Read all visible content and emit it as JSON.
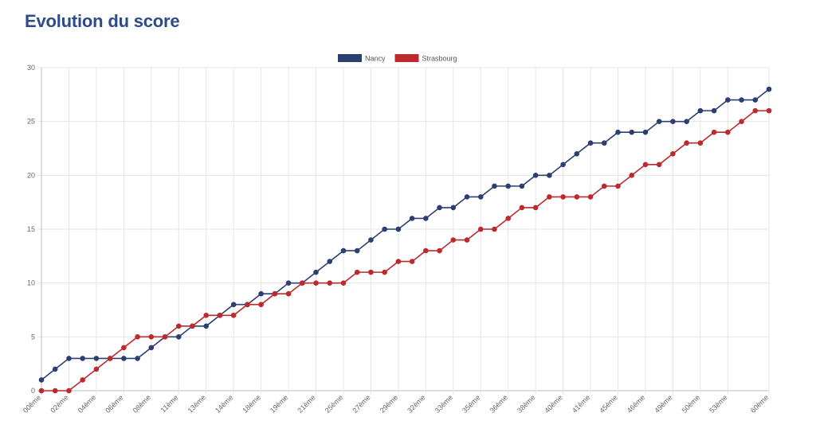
{
  "header": {
    "title": "Evolution du score"
  },
  "chart_data": {
    "type": "line",
    "title": "Evolution du score",
    "xlabel": "",
    "ylabel": "",
    "ylim": [
      0,
      30
    ],
    "yticks": [
      0,
      5,
      10,
      15,
      20,
      25,
      30
    ],
    "grid": true,
    "legend_position": "top-center",
    "x_tick_labels": [
      {
        "index": 0,
        "label": "00ème"
      },
      {
        "index": 2,
        "label": "02ème"
      },
      {
        "index": 4,
        "label": "04ème"
      },
      {
        "index": 6,
        "label": "06ème"
      },
      {
        "index": 8,
        "label": "08ème"
      },
      {
        "index": 10,
        "label": "11ème"
      },
      {
        "index": 12,
        "label": "13ème"
      },
      {
        "index": 14,
        "label": "14ème"
      },
      {
        "index": 16,
        "label": "18ème"
      },
      {
        "index": 18,
        "label": "19ème"
      },
      {
        "index": 20,
        "label": "21ème"
      },
      {
        "index": 22,
        "label": "25ème"
      },
      {
        "index": 24,
        "label": "27ème"
      },
      {
        "index": 26,
        "label": "29ème"
      },
      {
        "index": 28,
        "label": "32ème"
      },
      {
        "index": 30,
        "label": "33ème"
      },
      {
        "index": 32,
        "label": "35ème"
      },
      {
        "index": 34,
        "label": "36ème"
      },
      {
        "index": 36,
        "label": "38ème"
      },
      {
        "index": 38,
        "label": "40ème"
      },
      {
        "index": 40,
        "label": "41ème"
      },
      {
        "index": 42,
        "label": "45ème"
      },
      {
        "index": 44,
        "label": "46ème"
      },
      {
        "index": 46,
        "label": "49ème"
      },
      {
        "index": 48,
        "label": "50ème"
      },
      {
        "index": 50,
        "label": "53ème"
      },
      {
        "index": 53,
        "label": "60ème"
      }
    ],
    "series": [
      {
        "name": "Nancy",
        "color": "#2b3f72",
        "values": [
          1,
          2,
          3,
          3,
          3,
          3,
          3,
          3,
          4,
          5,
          5,
          6,
          6,
          7,
          8,
          8,
          9,
          9,
          10,
          10,
          11,
          12,
          13,
          13,
          14,
          15,
          15,
          16,
          16,
          17,
          17,
          18,
          18,
          19,
          19,
          19,
          20,
          20,
          21,
          22,
          23,
          23,
          24,
          24,
          24,
          25,
          25,
          25,
          26,
          26,
          27,
          27,
          27,
          28
        ]
      },
      {
        "name": "Strasbourg",
        "color": "#bb2a2d",
        "values": [
          0,
          0,
          0,
          1,
          2,
          3,
          4,
          5,
          5,
          5,
          6,
          6,
          7,
          7,
          7,
          8,
          8,
          9,
          9,
          10,
          10,
          10,
          10,
          11,
          11,
          11,
          12,
          12,
          13,
          13,
          14,
          14,
          15,
          15,
          16,
          17,
          17,
          18,
          18,
          18,
          18,
          19,
          19,
          20,
          21,
          21,
          22,
          23,
          23,
          24,
          24,
          25,
          26,
          26
        ]
      }
    ]
  }
}
